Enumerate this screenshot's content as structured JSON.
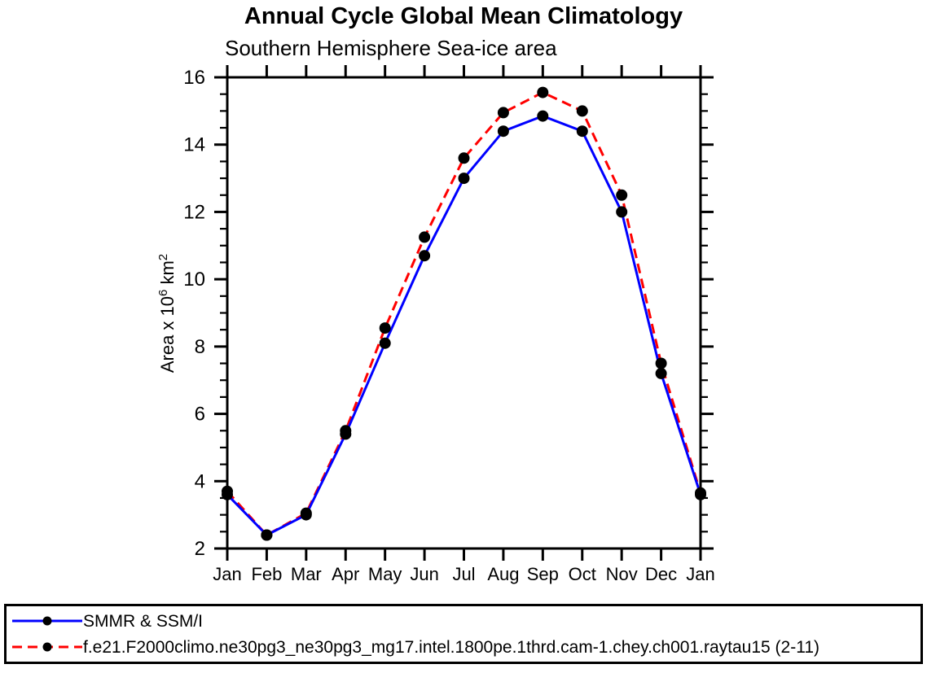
{
  "title": "Annual Cycle Global Mean Climatology",
  "subtitle": "Southern Hemisphere Sea-ice area",
  "colors": {
    "axis": "#000000",
    "marker": "#000000",
    "observation_line": "#0000ff",
    "model_line": "#ff0000"
  },
  "chart_data": {
    "type": "line",
    "title": "Annual Cycle Global Mean Climatology",
    "subtitle": "Southern Hemisphere Sea-ice area",
    "categories": [
      "Jan",
      "Feb",
      "Mar",
      "Apr",
      "May",
      "Jun",
      "Jul",
      "Aug",
      "Sep",
      "Oct",
      "Nov",
      "Dec",
      "Jan"
    ],
    "series": [
      {
        "name": "SMMR & SSM/I",
        "color": "#0000ff",
        "style": "solid",
        "marker": "filled-circle",
        "marker_color": "#000000",
        "values": [
          3.6,
          2.4,
          3.0,
          5.4,
          8.1,
          10.7,
          13.0,
          14.4,
          14.85,
          14.4,
          12.0,
          7.2,
          3.6
        ]
      },
      {
        "name": "f.e21.F2000climo.ne30pg3_ne30pg3_mg17.intel.1800pe.1thrd.cam-1.chey.ch001.raytau15 (2-11)",
        "color": "#ff0000",
        "style": "dashed",
        "marker": "filled-circle",
        "marker_color": "#000000",
        "values": [
          3.7,
          2.4,
          3.05,
          5.5,
          8.55,
          11.25,
          13.6,
          14.95,
          15.55,
          15.0,
          12.5,
          7.5,
          3.65
        ]
      }
    ],
    "xlabel": "",
    "ylabel": "Area x 10⁶ km²",
    "ylabel_parts": [
      {
        "text": "Area x 10"
      },
      {
        "text": "6",
        "sup": true
      },
      {
        "text": " km"
      },
      {
        "text": "2",
        "sup": true
      }
    ],
    "ylim": [
      2,
      16
    ],
    "ytick_major": 2,
    "ytick_minor": 0.5,
    "yticks": [
      2,
      4,
      6,
      8,
      10,
      12,
      14,
      16
    ],
    "grid": false,
    "legend_position": "bottom",
    "ticks_direction": "out"
  }
}
